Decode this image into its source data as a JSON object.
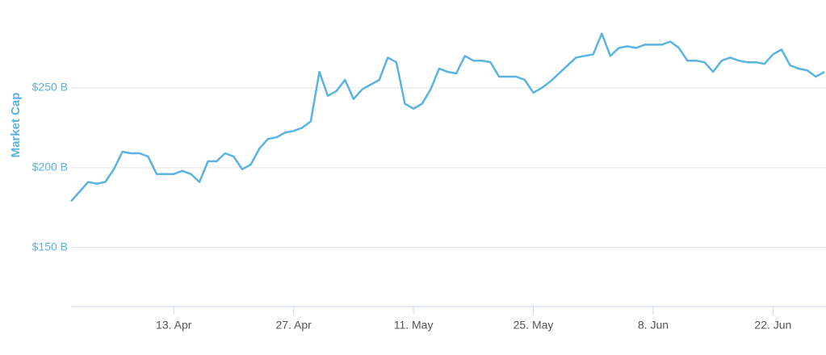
{
  "chart_data": {
    "type": "line",
    "y_label": "Market Cap",
    "categories": [
      null,
      null,
      null,
      null,
      null,
      null,
      null,
      null,
      null,
      null,
      null,
      null,
      "13. Apr",
      null,
      null,
      null,
      null,
      null,
      null,
      null,
      null,
      null,
      null,
      null,
      null,
      null,
      "27. Apr",
      null,
      null,
      null,
      null,
      null,
      null,
      null,
      null,
      null,
      null,
      null,
      null,
      null,
      "11. May",
      null,
      null,
      null,
      null,
      null,
      null,
      null,
      null,
      null,
      null,
      null,
      null,
      null,
      "25. May",
      null,
      null,
      null,
      null,
      null,
      null,
      null,
      null,
      null,
      null,
      null,
      null,
      null,
      "8. Jun",
      null,
      null,
      null,
      null,
      null,
      null,
      null,
      null,
      null,
      null,
      null,
      null,
      null,
      "22. Jun",
      null,
      null,
      null,
      null,
      null,
      null
    ],
    "series": [
      {
        "name": "Market Cap",
        "color": "#5ab3e0",
        "values": [
          179,
          185,
          191,
          190,
          191,
          199,
          210,
          209,
          209,
          207,
          196,
          196,
          196,
          198,
          196,
          191,
          204,
          204,
          209,
          207,
          199,
          202,
          212,
          218,
          219,
          222,
          223,
          225,
          229,
          260,
          245,
          248,
          255,
          243,
          249,
          252,
          255,
          269,
          266,
          240,
          237,
          240,
          249,
          262,
          260,
          259,
          270,
          267,
          267,
          266,
          257,
          257,
          257,
          255,
          247,
          250,
          254,
          259,
          264,
          269,
          270,
          271,
          284,
          270,
          275,
          276,
          275,
          277,
          277,
          277,
          279,
          275,
          267,
          267,
          266,
          260,
          267,
          269,
          267,
          266,
          266,
          265,
          271,
          274,
          264,
          262,
          261,
          257,
          260
        ]
      }
    ],
    "ylim": [
      113,
      305
    ],
    "yticks": [
      {
        "value": 150,
        "label": "$150 B"
      },
      {
        "value": 200,
        "label": "$200 B"
      },
      {
        "value": 250,
        "label": "$250 B"
      }
    ],
    "grid": true
  }
}
